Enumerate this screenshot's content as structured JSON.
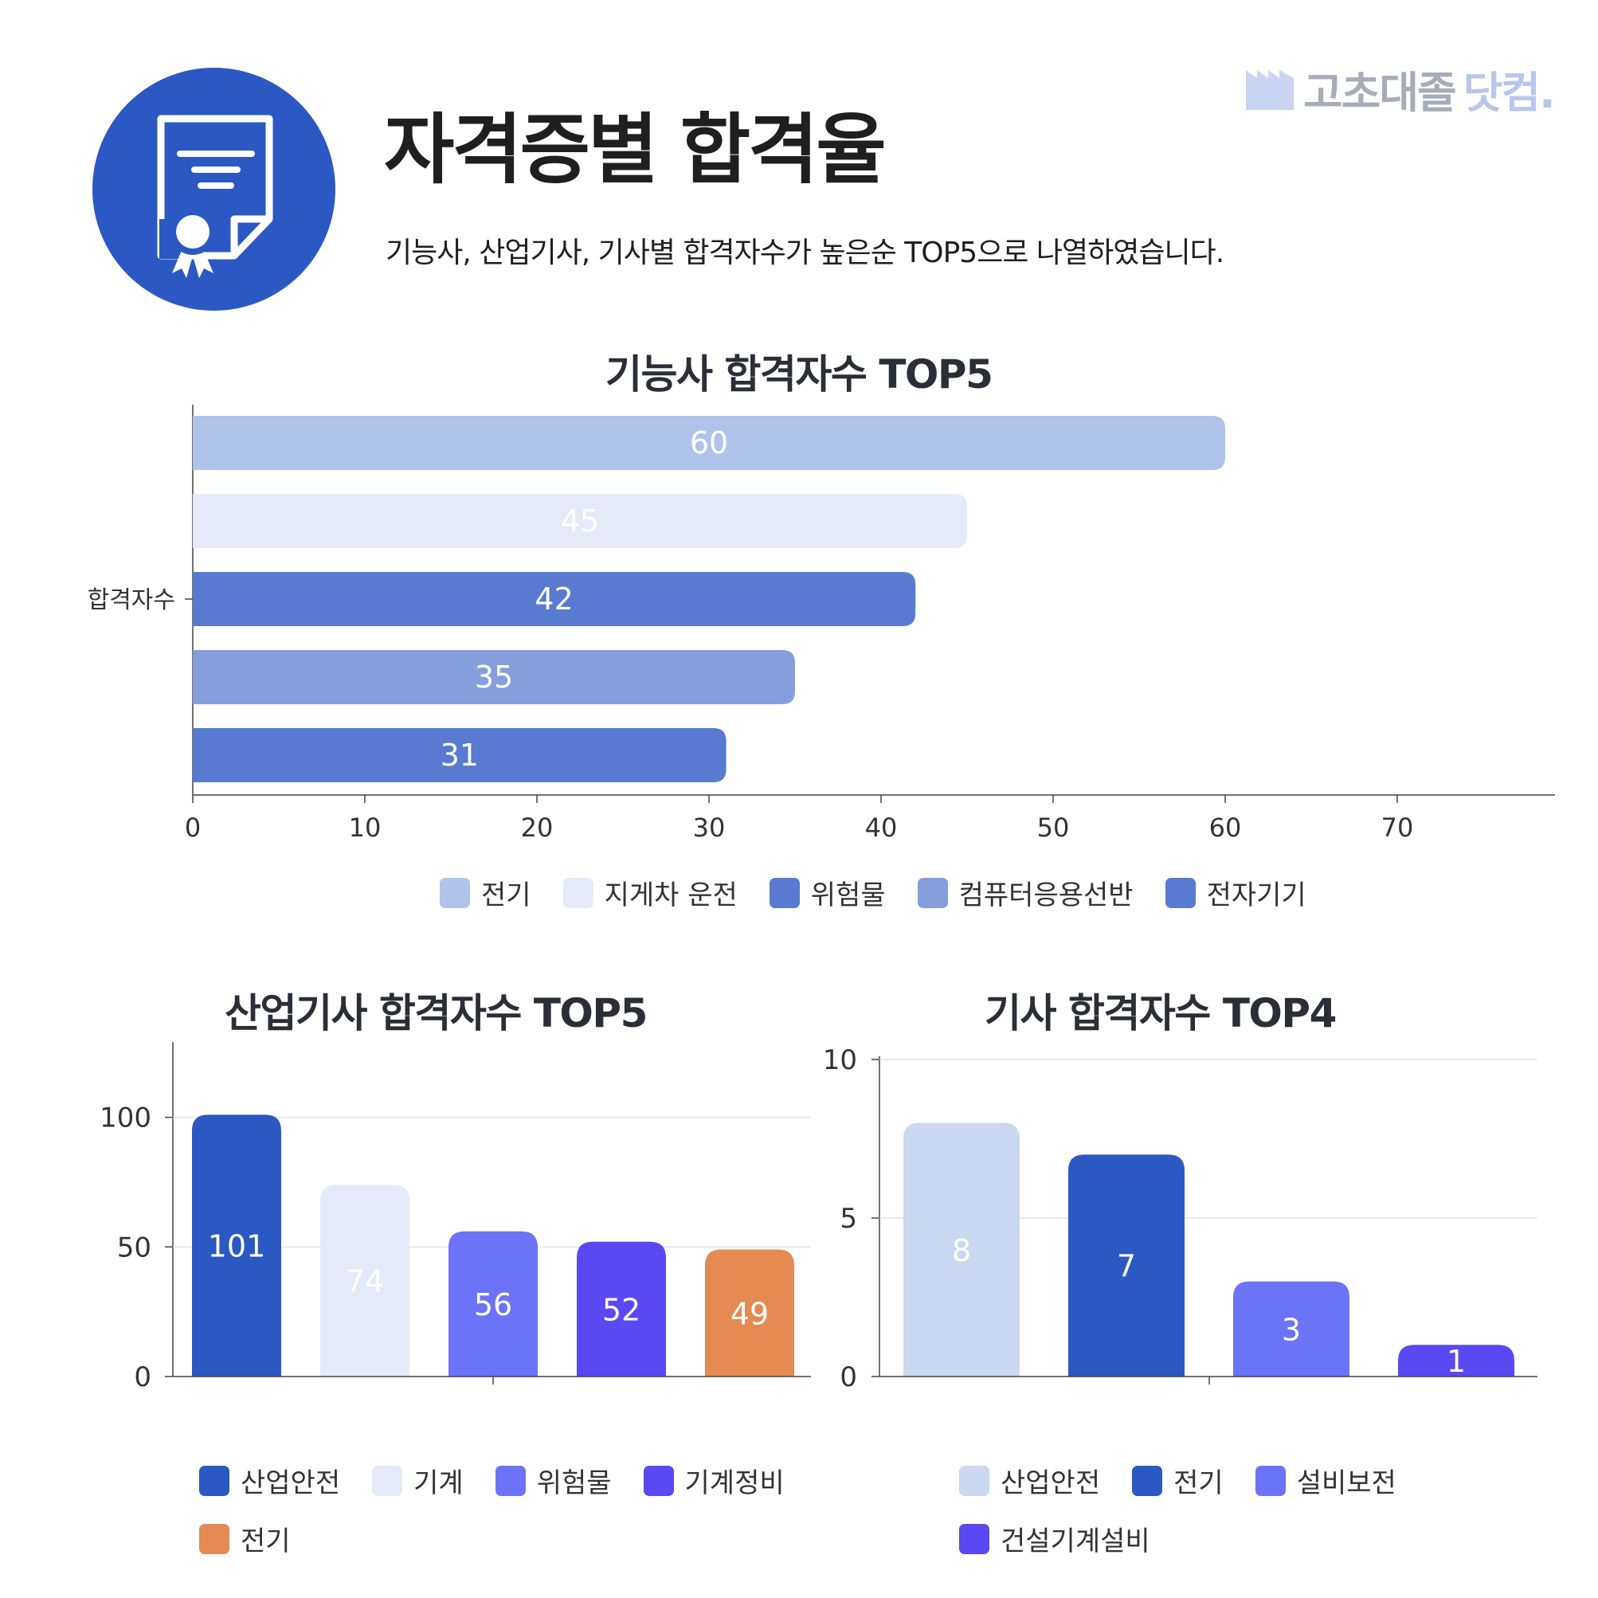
{
  "brand": {
    "name_part1": "고초대졸",
    "name_part2": "닷컴."
  },
  "header": {
    "title": "자격증별 합격율",
    "subtitle": "기능사, 산업기사, 기사별 합격자수가 높은순 TOP5으로 나열하였습니다."
  },
  "colors": {
    "badge": "#2c58c3",
    "brand_gray": "#a6adb9",
    "brand_light": "#b9c6ec"
  },
  "chart_data": [
    {
      "type": "bar",
      "orientation": "horizontal",
      "title": "기능사 합격자수 TOP5",
      "category_label": "합격자수",
      "xlim": [
        0,
        79
      ],
      "ticks": [
        "0",
        "10",
        "20",
        "30",
        "40",
        "50",
        "60",
        "70"
      ],
      "tick_values": [
        0,
        10,
        20,
        30,
        40,
        50,
        60,
        70
      ],
      "grid": false,
      "legend_position": "bottom",
      "series": [
        {
          "name": "전기",
          "value": 60,
          "label": "60",
          "color": "#b0c3eb"
        },
        {
          "name": "지게차 운전",
          "value": 45,
          "label": "45",
          "color": "#e4eaf8"
        },
        {
          "name": "위험물",
          "value": 42,
          "label": "42",
          "color": "#587bd1"
        },
        {
          "name": "컴퓨터응용선반",
          "value": 35,
          "label": "35",
          "color": "#859fdd"
        },
        {
          "name": "전자기기",
          "value": 31,
          "label": "31",
          "color": "#587bd1"
        }
      ]
    },
    {
      "type": "bar",
      "orientation": "vertical",
      "title": "산업기사 합격자수 TOP5",
      "ylim": [
        0,
        130
      ],
      "ticks": [
        "0",
        "50",
        "100"
      ],
      "tick_values": [
        0,
        50,
        100
      ],
      "grid": true,
      "legend_position": "bottom",
      "series": [
        {
          "name": "산업안전",
          "value": 101,
          "label": "101",
          "color": "#2c58c3"
        },
        {
          "name": "기계",
          "value": 74,
          "label": "74",
          "color": "#e4eaf8"
        },
        {
          "name": "위험물",
          "value": 56,
          "label": "56",
          "color": "#6b73f8"
        },
        {
          "name": "기계정비",
          "value": 52,
          "label": "52",
          "color": "#5a48f2"
        },
        {
          "name": "전기",
          "value": 49,
          "label": "49",
          "color": "#e58a53"
        }
      ]
    },
    {
      "type": "bar",
      "orientation": "vertical",
      "title": "기사 합격자수 TOP4",
      "ylim": [
        0,
        10
      ],
      "ticks": [
        "0",
        "5",
        "10"
      ],
      "tick_values": [
        0,
        5,
        10
      ],
      "grid": true,
      "legend_position": "bottom",
      "series": [
        {
          "name": "산업안전",
          "value": 8,
          "label": "8",
          "color": "#cad8f2"
        },
        {
          "name": "전기",
          "value": 7,
          "label": "7",
          "color": "#2c58c3"
        },
        {
          "name": "설비보전",
          "value": 3,
          "label": "3",
          "color": "#6b73f8"
        },
        {
          "name": "건설기계설비",
          "value": 1,
          "label": "1",
          "color": "#5a48f2"
        }
      ]
    }
  ]
}
